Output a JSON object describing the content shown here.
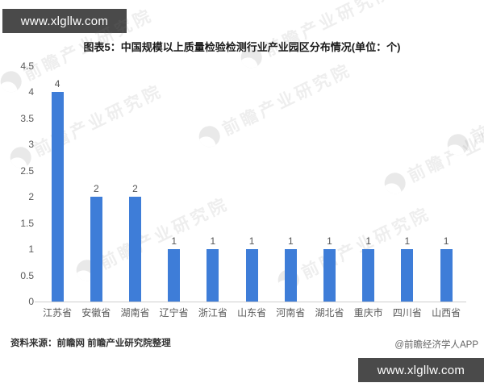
{
  "banners": {
    "top": {
      "text": "www.xlgllw.com"
    },
    "bottom": {
      "text": "www.xlgllw.com"
    }
  },
  "title": "图表5：中国规模以上质量检验检测行业产业园区分布情况(单位：个)",
  "source_note": "资料来源：前瞻网 前瞻产业研究院整理",
  "credit": "@前瞻经济学人APP",
  "watermark": {
    "text": "前瞻产业研究院"
  },
  "colors": {
    "bar": "#3e7dd8",
    "banner_bg": "#4a4a4a",
    "axis_line": "#cfcfcf",
    "tick_text": "#595959"
  },
  "chart_data": {
    "type": "bar",
    "title": "图表5：中国规模以上质量检验检测行业产业园区分布情况(单位：个)",
    "categories": [
      "江苏省",
      "安徽省",
      "湖南省",
      "辽宁省",
      "浙江省",
      "山东省",
      "河南省",
      "湖北省",
      "重庆市",
      "四川省",
      "山西省"
    ],
    "values": [
      4,
      2,
      2,
      1,
      1,
      1,
      1,
      1,
      1,
      1,
      1
    ],
    "bar_labels": [
      "4",
      "2",
      "2",
      "1",
      "1",
      "1",
      "1",
      "1",
      "1",
      "1",
      "1"
    ],
    "xlabel": "",
    "ylabel": "",
    "unit": "个",
    "ylim": [
      0,
      4.5
    ],
    "yticks": [
      0,
      0.5,
      1,
      1.5,
      2,
      2.5,
      3,
      3.5,
      4,
      4.5
    ],
    "grid": false,
    "legend_position": "none",
    "bar_color": "#3e7dd8"
  }
}
